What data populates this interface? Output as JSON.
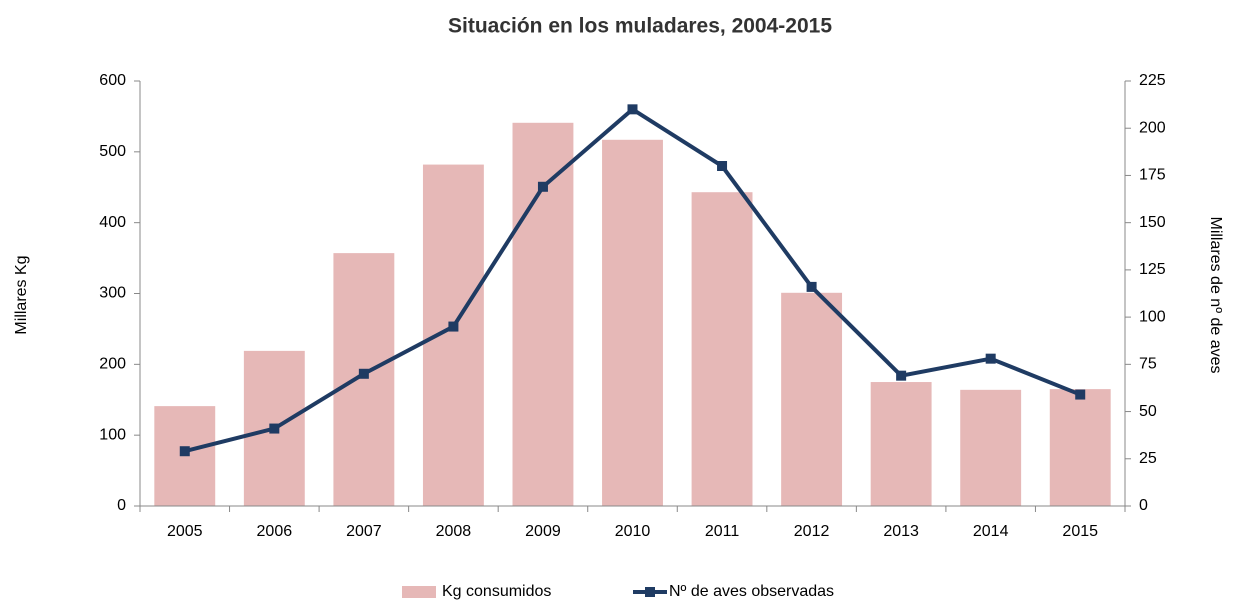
{
  "chart_data": {
    "type": "bar_line",
    "title": "Situación en los muladares, 2004-2015",
    "y_label": "Millares   Kg",
    "y2_label": "Millares  de nº de aves",
    "categories": [
      "2005",
      "2006",
      "2007",
      "2008",
      "2009",
      "2010",
      "2011",
      "2012",
      "2013",
      "2014",
      "2015"
    ],
    "series": [
      {
        "name": "Kg consumidos",
        "type": "bar",
        "color": "#e6b8b7",
        "values": [
          141,
          219,
          357,
          482,
          541,
          517,
          443,
          301,
          175,
          164,
          165
        ]
      },
      {
        "name": "Nº de aves observadas",
        "type": "line",
        "axis": "y2",
        "color": "#1f3b63",
        "values": [
          29,
          41,
          70,
          95,
          169,
          210,
          180,
          116,
          69,
          78,
          59
        ]
      }
    ],
    "ylim": [
      0,
      600
    ],
    "yticks": [
      0,
      100,
      200,
      300,
      400,
      500,
      600
    ],
    "y2lim": [
      0,
      225
    ],
    "y2ticks": [
      0,
      25,
      50,
      75,
      100,
      125,
      150,
      175,
      200,
      225
    ],
    "legend": "bottom"
  }
}
